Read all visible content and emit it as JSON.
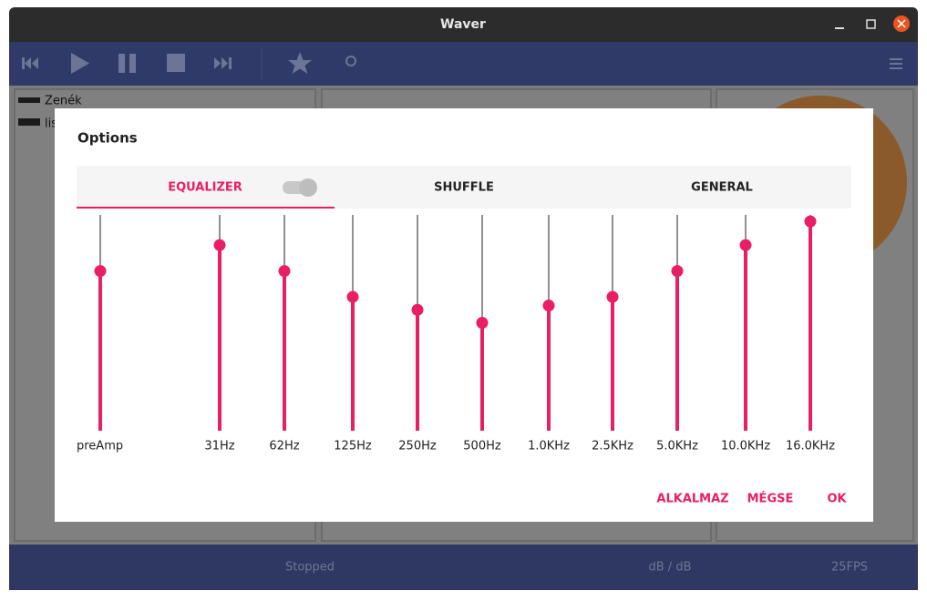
{
  "window": {
    "title": "Waver"
  },
  "sidebar": {
    "items": [
      "Zenék",
      "lis"
    ]
  },
  "status_bar": {
    "state": "Stopped",
    "level": "dB / dB",
    "fps": "25FPS"
  },
  "dialog": {
    "title": "Options",
    "tabs": [
      "EQUALIZER",
      "SHUFFLE",
      "GENERAL"
    ],
    "equalizer": {
      "bands": [
        {
          "label": "preAmp",
          "value": 0.74
        },
        {
          "label": "31Hz",
          "value": 0.86
        },
        {
          "label": "62Hz",
          "value": 0.74
        },
        {
          "label": "125Hz",
          "value": 0.62
        },
        {
          "label": "250Hz",
          "value": 0.56
        },
        {
          "label": "500Hz",
          "value": 0.5
        },
        {
          "label": "1.0KHz",
          "value": 0.58
        },
        {
          "label": "2.5KHz",
          "value": 0.62
        },
        {
          "label": "5.0KHz",
          "value": 0.74
        },
        {
          "label": "10.0KHz",
          "value": 0.86
        },
        {
          "label": "16.0KHz",
          "value": 0.97
        }
      ]
    },
    "buttons": [
      "ALKALMAZ",
      "MÉGSE",
      "OK"
    ]
  }
}
